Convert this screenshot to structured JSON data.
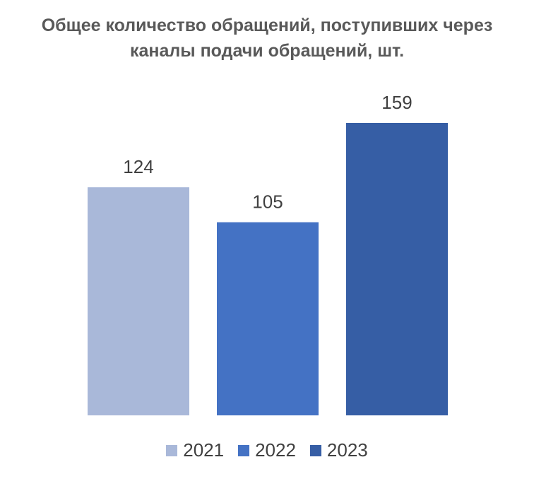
{
  "chart_data": {
    "type": "bar",
    "title_lines": [
      "Общее количество обращений, поступивших через",
      "каналы подачи обращений, шт."
    ],
    "categories": [
      "2021",
      "2022",
      "2023"
    ],
    "values": [
      124,
      105,
      159
    ],
    "data_labels": [
      "124",
      "105",
      "159"
    ],
    "colors": [
      "#a9b8d9",
      "#4472c4",
      "#365ea5"
    ],
    "ylim": [
      0,
      159
    ],
    "grid": false,
    "legend_position": "bottom",
    "xlabel": "",
    "ylabel": ""
  }
}
